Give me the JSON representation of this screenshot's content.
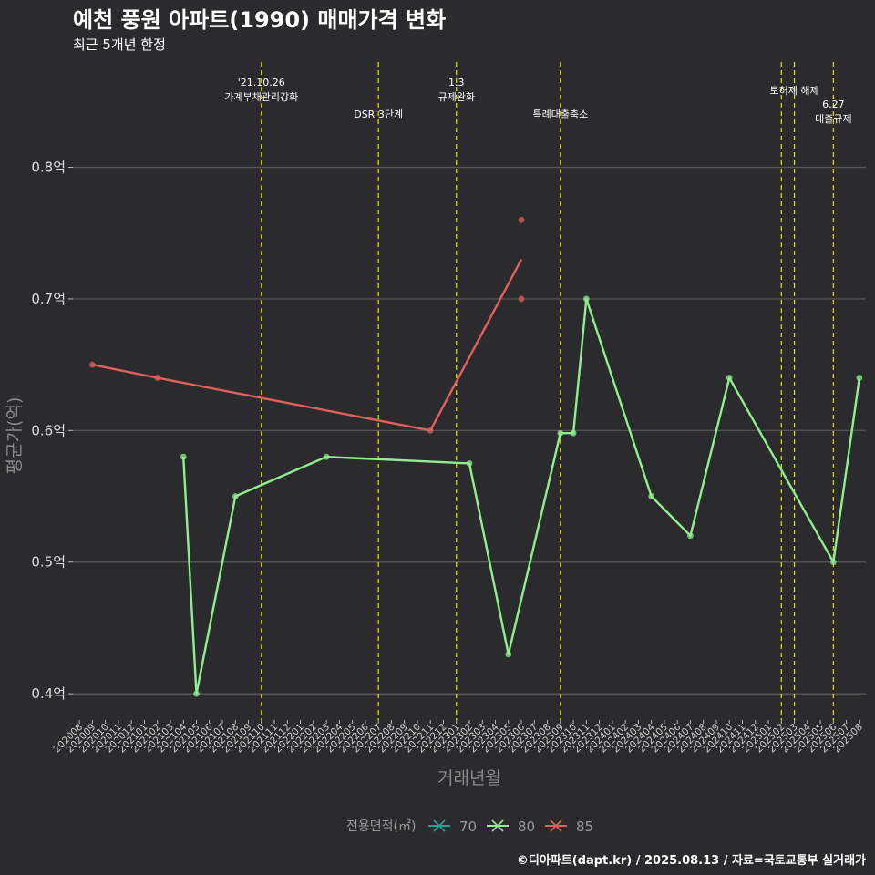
{
  "header": {
    "title": "예천 풍원 아파트(1990) 매매가격 변화",
    "subtitle": "최근 5개년 한정"
  },
  "caption": "©디아파트(dapt.kr) / 2025.08.13 / 자료=국토교통부 실거래가",
  "colors": {
    "background": "#2b2a2c",
    "grid": "#5a5a5a",
    "event_line": "#e6e600",
    "s70": "#2aa198",
    "s80": "#90ee90",
    "s85": "#e06060"
  },
  "chart_data": {
    "type": "line",
    "xlabel": "거래년월",
    "ylabel": "평균가(억)",
    "x_categories": [
      "202008",
      "202009",
      "202010",
      "202011",
      "202012",
      "202101",
      "202102",
      "202103",
      "202104",
      "202105",
      "202106",
      "202107",
      "202108",
      "202109",
      "202110",
      "202111",
      "202112",
      "202201",
      "202202",
      "202203",
      "202204",
      "202205",
      "202206",
      "202207",
      "202208",
      "202209",
      "202210",
      "202211",
      "202212",
      "202301",
      "202302",
      "202303",
      "202304",
      "202305",
      "202306",
      "202307",
      "202308",
      "202309",
      "202310",
      "202311",
      "202312",
      "202401",
      "202402",
      "202403",
      "202404",
      "202405",
      "202406",
      "202407",
      "202408",
      "202409",
      "202410",
      "202411",
      "202412",
      "202501",
      "202502",
      "202503",
      "202504",
      "202505",
      "202506",
      "202507",
      "202508"
    ],
    "ylim": [
      0.38,
      0.88
    ],
    "y_ticks": [
      {
        "value": 0.4,
        "label": "0.4억"
      },
      {
        "value": 0.5,
        "label": "0.5억"
      },
      {
        "value": 0.6,
        "label": "0.6억"
      },
      {
        "value": 0.7,
        "label": "0.7억"
      },
      {
        "value": 0.8,
        "label": "0.8억"
      }
    ],
    "grid": true,
    "legend": {
      "title": "전용면적(㎡)",
      "position": "bottom",
      "entries": [
        "70",
        "80",
        "85"
      ]
    },
    "series": [
      {
        "name": "70",
        "color": "#2aa198",
        "line": [],
        "points": []
      },
      {
        "name": "80",
        "color": "#90ee90",
        "line": [
          [
            "202104",
            0.58
          ],
          [
            "202105",
            0.4
          ],
          [
            "202108",
            0.55
          ],
          [
            "202203",
            0.58
          ],
          [
            "202302",
            0.575
          ],
          [
            "202305",
            0.43
          ],
          [
            "202309",
            0.598
          ],
          [
            "202310",
            0.598
          ],
          [
            "202311",
            0.7
          ],
          [
            "202404",
            0.55
          ],
          [
            "202407",
            0.52
          ],
          [
            "202410",
            0.64
          ],
          [
            "202506",
            0.5
          ],
          [
            "202508",
            0.64
          ]
        ],
        "points": [
          [
            "202104",
            0.58
          ],
          [
            "202105",
            0.4
          ],
          [
            "202108",
            0.55
          ],
          [
            "202203",
            0.58
          ],
          [
            "202302",
            0.575
          ],
          [
            "202305",
            0.43
          ],
          [
            "202309",
            0.598
          ],
          [
            "202310",
            0.598
          ],
          [
            "202311",
            0.7
          ],
          [
            "202404",
            0.55
          ],
          [
            "202407",
            0.52
          ],
          [
            "202410",
            0.64
          ],
          [
            "202506",
            0.5
          ],
          [
            "202508",
            0.64
          ]
        ]
      },
      {
        "name": "85",
        "color": "#e06060",
        "line": [
          [
            "202009",
            0.65
          ],
          [
            "202102",
            0.64
          ],
          [
            "202211",
            0.6
          ],
          [
            "202306",
            0.73
          ]
        ],
        "points": [
          [
            "202009",
            0.65
          ],
          [
            "202102",
            0.64
          ],
          [
            "202211",
            0.6
          ],
          [
            "202306",
            0.76
          ],
          [
            "202306",
            0.7
          ]
        ]
      }
    ],
    "events": [
      {
        "x": "202110",
        "lines": [
          "'21.10.26",
          "가계부채관리강화"
        ],
        "row": "top"
      },
      {
        "x": "202207",
        "lines": [
          "DSR 3단계"
        ],
        "row": "low"
      },
      {
        "x": "202301",
        "lines": [
          "1.3",
          "규제완화"
        ],
        "row": "top"
      },
      {
        "x": "202309",
        "lines": [
          "특례대출축소"
        ],
        "row": "low"
      },
      {
        "x": "202502",
        "lines": [],
        "row": "none"
      },
      {
        "x": "202503",
        "lines": [
          "토허제 해제"
        ],
        "row": "mid"
      },
      {
        "x": "202506",
        "lines": [
          "6.27",
          "대출규제"
        ],
        "row": "lowest"
      }
    ]
  }
}
